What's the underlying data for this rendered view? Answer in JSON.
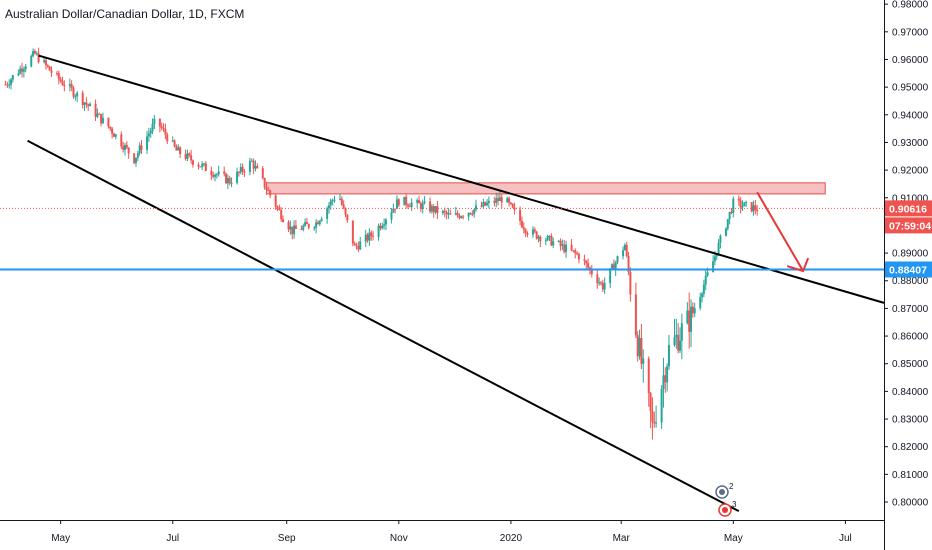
{
  "header": {
    "title": "Australian Dollar/Canadian Dollar, 1D, FXCM"
  },
  "colors": {
    "up": "#26a69a",
    "down": "#ef5350",
    "trendline": "#000000",
    "support_line": "#2196f3",
    "resistance_zone": "#f8bbbb",
    "resistance_border": "#e53935",
    "arrow": "#e53935",
    "price_tag": "#ef5350",
    "support_tag": "#2196f3"
  },
  "chart_data": {
    "type": "candlestick",
    "title": "Australian Dollar/Canadian Dollar, 1D, FXCM",
    "x_ticks": [
      "May",
      "Jul",
      "Sep",
      "Nov",
      "2020",
      "Mar",
      "May",
      "Jul"
    ],
    "y_ticks": [
      "0.80000",
      "0.81000",
      "0.82000",
      "0.83000",
      "0.84000",
      "0.85000",
      "0.86000",
      "0.87000",
      "0.88000",
      "0.89000",
      "0.90000",
      "0.91000",
      "0.92000",
      "0.93000",
      "0.94000",
      "0.95000",
      "0.96000",
      "0.97000",
      "0.98000"
    ],
    "ylim": [
      0.7935,
      0.9815
    ],
    "date_range": [
      "2019-03-29",
      "2020-07-22"
    ],
    "current_price": {
      "value": 0.90616,
      "label": "0.90616",
      "countdown": "07:59:04"
    },
    "support_level": {
      "value": 0.88407,
      "label": "0.88407"
    },
    "resistance_zone": {
      "from_date": "2019-08-21",
      "to_date": "2020-06-20",
      "low": 0.9114,
      "high": 0.9154
    },
    "trendlines": [
      {
        "name": "upper",
        "from": [
          "2019-04-19",
          0.9614
        ],
        "to": [
          "2020-07-22",
          0.872
        ]
      },
      {
        "name": "lower",
        "from": [
          "2019-04-13",
          0.9306
        ],
        "to": [
          "2020-05-04",
          0.7967
        ]
      }
    ],
    "forecast_arrow": {
      "from": [
        "2020-05-14",
        0.912
      ],
      "to": [
        "2020-06-08",
        0.8835
      ]
    },
    "events": [
      "2",
      "3"
    ],
    "ohlc_anchors": [
      [
        "2019-04-01",
        0.951
      ],
      [
        "2019-04-17",
        0.962
      ],
      [
        "2019-04-28",
        0.954
      ],
      [
        "2019-05-12",
        0.946
      ],
      [
        "2019-05-28",
        0.935
      ],
      [
        "2019-06-10",
        0.924
      ],
      [
        "2019-06-22",
        0.938
      ],
      [
        "2019-07-03",
        0.927
      ],
      [
        "2019-07-18",
        0.921
      ],
      [
        "2019-08-01",
        0.916
      ],
      [
        "2019-08-13",
        0.923
      ],
      [
        "2019-08-28",
        0.905
      ],
      [
        "2019-09-04",
        0.898
      ],
      [
        "2019-09-17",
        0.901
      ],
      [
        "2019-09-29",
        0.912
      ],
      [
        "2019-10-08",
        0.892
      ],
      [
        "2019-10-18",
        0.897
      ],
      [
        "2019-11-01",
        0.909
      ],
      [
        "2019-11-15",
        0.907
      ],
      [
        "2019-11-30",
        0.903
      ],
      [
        "2019-12-13",
        0.906
      ],
      [
        "2019-12-28",
        0.91
      ],
      [
        "2020-01-10",
        0.898
      ],
      [
        "2020-01-24",
        0.894
      ],
      [
        "2020-02-07",
        0.889
      ],
      [
        "2020-02-20",
        0.878
      ],
      [
        "2020-03-03",
        0.893
      ],
      [
        "2020-03-10",
        0.858
      ],
      [
        "2020-03-18",
        0.827
      ],
      [
        "2020-03-27",
        0.855
      ],
      [
        "2020-04-08",
        0.867
      ],
      [
        "2020-04-20",
        0.887
      ],
      [
        "2020-05-01",
        0.908
      ],
      [
        "2020-05-14",
        0.906
      ]
    ]
  }
}
